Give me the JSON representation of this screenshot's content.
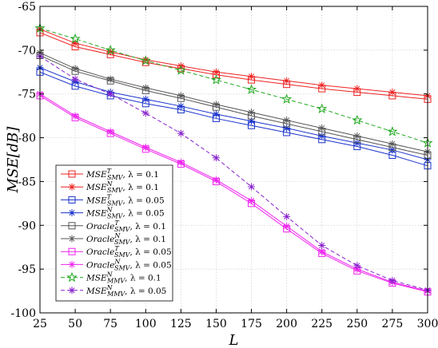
{
  "chart_data": {
    "type": "line",
    "xlabel": "L",
    "ylabel": "MSE[dB]",
    "x": [
      25,
      50,
      75,
      100,
      125,
      150,
      175,
      200,
      225,
      250,
      275,
      300
    ],
    "xlim": [
      25,
      300
    ],
    "ylim": [
      -100,
      -65
    ],
    "xticks": [
      "25",
      "50",
      "75",
      "100",
      "125",
      "150",
      "175",
      "200",
      "225",
      "250",
      "275",
      "300"
    ],
    "yticks": [
      "-65",
      "-70",
      "-75",
      "-80",
      "-85",
      "-90",
      "-95",
      "-100"
    ],
    "grid": true,
    "legend_position": "bottom-left",
    "series": [
      {
        "name": "MSE^T_SMV, λ = 0.1",
        "color": "#ee2222",
        "marker": "square",
        "dash": false,
        "values": [
          -68.0,
          -69.6,
          -70.5,
          -71.4,
          -72.1,
          -72.8,
          -73.4,
          -73.9,
          -74.4,
          -74.8,
          -75.2,
          -75.6
        ]
      },
      {
        "name": "MSE^N_SMV, λ = 0.1",
        "color": "#ee2222",
        "marker": "cross",
        "dash": false,
        "values": [
          -67.6,
          -69.2,
          -70.2,
          -71.1,
          -71.8,
          -72.5,
          -73.0,
          -73.5,
          -74.0,
          -74.4,
          -74.8,
          -75.2
        ]
      },
      {
        "name": "MSE^T_SMV, λ = 0.05",
        "color": "#1a33cc",
        "marker": "square",
        "dash": false,
        "values": [
          -72.5,
          -74.1,
          -75.2,
          -76.1,
          -76.8,
          -77.8,
          -78.6,
          -79.4,
          -80.2,
          -81.0,
          -82.0,
          -83.2
        ]
      },
      {
        "name": "MSE^N_SMV, λ = 0.05",
        "color": "#1a33cc",
        "marker": "cross",
        "dash": false,
        "values": [
          -72.0,
          -73.6,
          -74.8,
          -75.6,
          -76.4,
          -77.3,
          -78.1,
          -78.9,
          -79.8,
          -80.6,
          -81.4,
          -82.5
        ]
      },
      {
        "name": "Oracle^T_SMV, λ = 0.1",
        "color": "#555555",
        "marker": "square",
        "dash": false,
        "values": [
          -70.6,
          -72.4,
          -73.5,
          -74.6,
          -75.5,
          -76.5,
          -77.5,
          -78.4,
          -79.3,
          -80.2,
          -81.1,
          -82.0
        ]
      },
      {
        "name": "Oracle^N_SMV, λ = 0.1",
        "color": "#555555",
        "marker": "cross",
        "dash": false,
        "values": [
          -70.3,
          -72.1,
          -73.3,
          -74.3,
          -75.2,
          -76.2,
          -77.1,
          -78.0,
          -78.9,
          -79.8,
          -80.7,
          -81.6
        ]
      },
      {
        "name": "Oracle^T_SMV, λ = 0.05",
        "color": "#ee22ee",
        "marker": "square",
        "dash": false,
        "values": [
          -75.2,
          -77.7,
          -79.5,
          -81.3,
          -83.0,
          -85.0,
          -87.5,
          -90.4,
          -93.2,
          -95.2,
          -96.6,
          -97.6
        ]
      },
      {
        "name": "Oracle^N_SMV, λ = 0.05",
        "color": "#ee22ee",
        "marker": "cross",
        "dash": false,
        "values": [
          -75.0,
          -77.5,
          -79.3,
          -81.1,
          -82.8,
          -84.8,
          -87.2,
          -90.1,
          -93.0,
          -95.0,
          -96.5,
          -97.5
        ]
      },
      {
        "name": "MSE^N_MMV, λ = 0.1",
        "color": "#22aa22",
        "marker": "star",
        "dash": true,
        "values": [
          -67.5,
          -68.7,
          -70.0,
          -71.2,
          -72.3,
          -73.4,
          -74.5,
          -75.6,
          -76.7,
          -78.0,
          -79.3,
          -80.6
        ]
      },
      {
        "name": "MSE^N_MMV, λ = 0.05",
        "color": "#8822cc",
        "marker": "cross",
        "dash": true,
        "values": [
          -70.7,
          -73.3,
          -75.0,
          -77.2,
          -79.5,
          -82.3,
          -85.6,
          -89.0,
          -92.3,
          -94.6,
          -96.3,
          -97.4
        ]
      }
    ]
  },
  "legend": [
    {
      "base": "MSE",
      "sup": "T",
      "sub": "SMV",
      "suffix": ", λ = 0.1"
    },
    {
      "base": "MSE",
      "sup": "N",
      "sub": "SMV",
      "suffix": ", λ = 0.1"
    },
    {
      "base": "MSE",
      "sup": "T",
      "sub": "SMV",
      "suffix": ", λ = 0.05"
    },
    {
      "base": "MSE",
      "sup": "N",
      "sub": "SMV",
      "suffix": ", λ = 0.05"
    },
    {
      "base": "Oracle",
      "sup": "T",
      "sub": "SMV",
      "suffix": ", λ = 0.1"
    },
    {
      "base": "Oracle",
      "sup": "N",
      "sub": "SMV",
      "suffix": ", λ = 0.1"
    },
    {
      "base": "Oracle",
      "sup": "T",
      "sub": "SMV",
      "suffix": ", λ = 0.05"
    },
    {
      "base": "Oracle",
      "sup": "N",
      "sub": "SMV",
      "suffix": ", λ = 0.05"
    },
    {
      "base": "MSE",
      "sup": "N",
      "sub": "MMV",
      "suffix": ", λ = 0.1"
    },
    {
      "base": "MSE",
      "sup": "N",
      "sub": "MMV",
      "suffix": ", λ = 0.05"
    }
  ]
}
